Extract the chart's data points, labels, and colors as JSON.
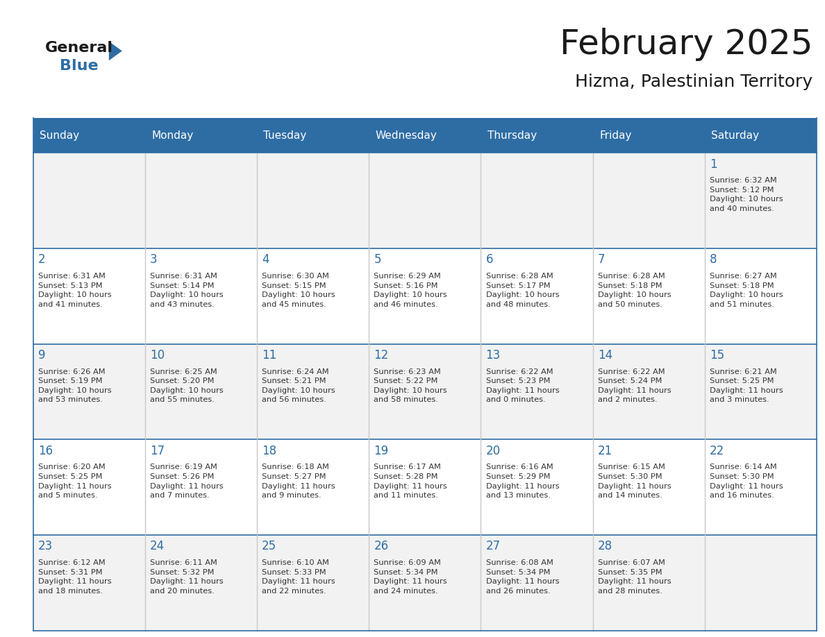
{
  "title": "February 2025",
  "subtitle": "Hizma, Palestinian Territory",
  "header_bg": "#2E6DA4",
  "header_text_color": "#FFFFFF",
  "cell_bg_light": "#F2F2F2",
  "cell_bg_white": "#FFFFFF",
  "day_number_color": "#2E6DA4",
  "text_color": "#333333",
  "grid_color": "#CCCCCC",
  "days_of_week": [
    "Sunday",
    "Monday",
    "Tuesday",
    "Wednesday",
    "Thursday",
    "Friday",
    "Saturday"
  ],
  "weeks": [
    [
      {
        "day": null,
        "info": null
      },
      {
        "day": null,
        "info": null
      },
      {
        "day": null,
        "info": null
      },
      {
        "day": null,
        "info": null
      },
      {
        "day": null,
        "info": null
      },
      {
        "day": null,
        "info": null
      },
      {
        "day": 1,
        "info": "Sunrise: 6:32 AM\nSunset: 5:12 PM\nDaylight: 10 hours\nand 40 minutes."
      }
    ],
    [
      {
        "day": 2,
        "info": "Sunrise: 6:31 AM\nSunset: 5:13 PM\nDaylight: 10 hours\nand 41 minutes."
      },
      {
        "day": 3,
        "info": "Sunrise: 6:31 AM\nSunset: 5:14 PM\nDaylight: 10 hours\nand 43 minutes."
      },
      {
        "day": 4,
        "info": "Sunrise: 6:30 AM\nSunset: 5:15 PM\nDaylight: 10 hours\nand 45 minutes."
      },
      {
        "day": 5,
        "info": "Sunrise: 6:29 AM\nSunset: 5:16 PM\nDaylight: 10 hours\nand 46 minutes."
      },
      {
        "day": 6,
        "info": "Sunrise: 6:28 AM\nSunset: 5:17 PM\nDaylight: 10 hours\nand 48 minutes."
      },
      {
        "day": 7,
        "info": "Sunrise: 6:28 AM\nSunset: 5:18 PM\nDaylight: 10 hours\nand 50 minutes."
      },
      {
        "day": 8,
        "info": "Sunrise: 6:27 AM\nSunset: 5:18 PM\nDaylight: 10 hours\nand 51 minutes."
      }
    ],
    [
      {
        "day": 9,
        "info": "Sunrise: 6:26 AM\nSunset: 5:19 PM\nDaylight: 10 hours\nand 53 minutes."
      },
      {
        "day": 10,
        "info": "Sunrise: 6:25 AM\nSunset: 5:20 PM\nDaylight: 10 hours\nand 55 minutes."
      },
      {
        "day": 11,
        "info": "Sunrise: 6:24 AM\nSunset: 5:21 PM\nDaylight: 10 hours\nand 56 minutes."
      },
      {
        "day": 12,
        "info": "Sunrise: 6:23 AM\nSunset: 5:22 PM\nDaylight: 10 hours\nand 58 minutes."
      },
      {
        "day": 13,
        "info": "Sunrise: 6:22 AM\nSunset: 5:23 PM\nDaylight: 11 hours\nand 0 minutes."
      },
      {
        "day": 14,
        "info": "Sunrise: 6:22 AM\nSunset: 5:24 PM\nDaylight: 11 hours\nand 2 minutes."
      },
      {
        "day": 15,
        "info": "Sunrise: 6:21 AM\nSunset: 5:25 PM\nDaylight: 11 hours\nand 3 minutes."
      }
    ],
    [
      {
        "day": 16,
        "info": "Sunrise: 6:20 AM\nSunset: 5:25 PM\nDaylight: 11 hours\nand 5 minutes."
      },
      {
        "day": 17,
        "info": "Sunrise: 6:19 AM\nSunset: 5:26 PM\nDaylight: 11 hours\nand 7 minutes."
      },
      {
        "day": 18,
        "info": "Sunrise: 6:18 AM\nSunset: 5:27 PM\nDaylight: 11 hours\nand 9 minutes."
      },
      {
        "day": 19,
        "info": "Sunrise: 6:17 AM\nSunset: 5:28 PM\nDaylight: 11 hours\nand 11 minutes."
      },
      {
        "day": 20,
        "info": "Sunrise: 6:16 AM\nSunset: 5:29 PM\nDaylight: 11 hours\nand 13 minutes."
      },
      {
        "day": 21,
        "info": "Sunrise: 6:15 AM\nSunset: 5:30 PM\nDaylight: 11 hours\nand 14 minutes."
      },
      {
        "day": 22,
        "info": "Sunrise: 6:14 AM\nSunset: 5:30 PM\nDaylight: 11 hours\nand 16 minutes."
      }
    ],
    [
      {
        "day": 23,
        "info": "Sunrise: 6:12 AM\nSunset: 5:31 PM\nDaylight: 11 hours\nand 18 minutes."
      },
      {
        "day": 24,
        "info": "Sunrise: 6:11 AM\nSunset: 5:32 PM\nDaylight: 11 hours\nand 20 minutes."
      },
      {
        "day": 25,
        "info": "Sunrise: 6:10 AM\nSunset: 5:33 PM\nDaylight: 11 hours\nand 22 minutes."
      },
      {
        "day": 26,
        "info": "Sunrise: 6:09 AM\nSunset: 5:34 PM\nDaylight: 11 hours\nand 24 minutes."
      },
      {
        "day": 27,
        "info": "Sunrise: 6:08 AM\nSunset: 5:34 PM\nDaylight: 11 hours\nand 26 minutes."
      },
      {
        "day": 28,
        "info": "Sunrise: 6:07 AM\nSunset: 5:35 PM\nDaylight: 11 hours\nand 28 minutes."
      },
      {
        "day": null,
        "info": null
      }
    ]
  ]
}
